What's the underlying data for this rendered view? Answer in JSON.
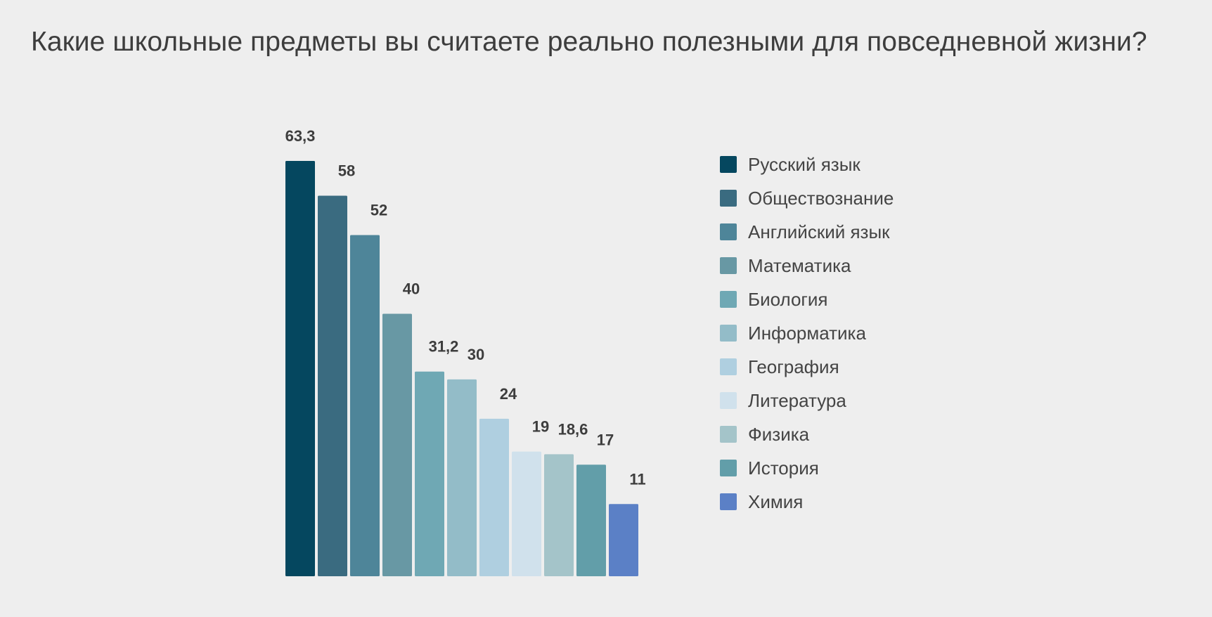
{
  "chart_data": {
    "type": "bar",
    "title": "Какие школьные предметы вы считаете реально полезными для повседневной жизни?",
    "categories": [
      "Русский язык",
      "Обществознание",
      "Английский язык",
      "Математика",
      "Биология",
      "Информатика",
      "География",
      "Литература",
      "Физика",
      "История",
      "Химия"
    ],
    "values": [
      63.3,
      58,
      52,
      40,
      31.2,
      30,
      24,
      19,
      18.6,
      17,
      11
    ],
    "value_labels": [
      "63,3",
      "58",
      "52",
      "40",
      "31,2",
      "30",
      "24",
      "19",
      "18,6",
      "17",
      "11"
    ],
    "colors": [
      "#05475f",
      "#3a6b80",
      "#4e8599",
      "#6898a4",
      "#6fa8b4",
      "#93bcc8",
      "#afcfe0",
      "#d0e1ec",
      "#a4c4c9",
      "#629ea9",
      "#5b80c6"
    ],
    "legend_position": "right",
    "grid": false,
    "ylim": [
      0,
      63.3
    ]
  }
}
